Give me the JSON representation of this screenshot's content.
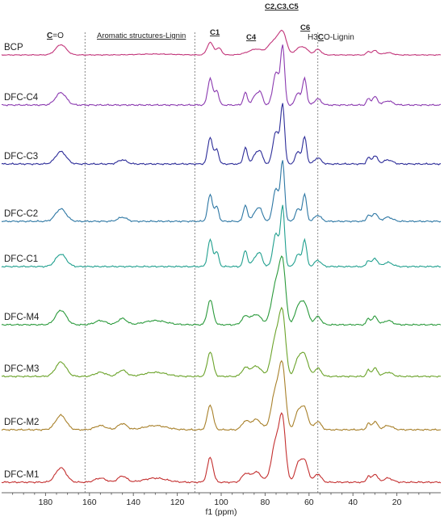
{
  "chart_data": {
    "type": "line",
    "title": "",
    "xlabel": "f1 (ppm)",
    "ylabel": "",
    "xlim": [
      200,
      0
    ],
    "x_reversed": true,
    "grid": false,
    "x_ticks": [
      "180",
      "160",
      "140",
      "120",
      "100",
      "80",
      "60",
      "40",
      "20"
    ],
    "annotations": {
      "carbonyl_underlined": "C",
      "carbonyl_rest": "=O",
      "aromatic": "Aromatic structures-Lignin",
      "c1": "C1",
      "c4": "C4",
      "c235": "C2,C3,C5",
      "c6": "C6",
      "methoxy_prefix": "H3",
      "methoxy_underlined": "C",
      "methoxy_suffix": "O-Lignin"
    },
    "reference_lines_ppm": [
      162,
      112,
      56
    ],
    "series": [
      {
        "name": "BCP",
        "color": "#c2357a",
        "scale": 0.55,
        "peaks": [
          [
            173,
            9,
            2.4
          ],
          [
            130,
            0.8,
            8
          ],
          [
            105,
            11,
            1.4
          ],
          [
            101,
            6,
            1.2
          ],
          [
            89,
            1,
            2.5
          ],
          [
            84,
            5,
            2.8
          ],
          [
            76,
            12,
            2.5
          ],
          [
            72,
            18,
            1.8
          ],
          [
            65,
            5,
            1.5
          ],
          [
            62,
            6,
            1.7
          ],
          [
            56,
            5,
            1.5
          ],
          [
            33,
            3,
            0.8
          ],
          [
            30,
            4,
            1.2
          ],
          [
            24,
            2,
            2
          ]
        ]
      },
      {
        "name": "DFC-C4",
        "color": "#8b3ab0",
        "scale": 1.0,
        "peaks": [
          [
            173,
            6,
            2.4
          ],
          [
            105,
            13,
            1.1
          ],
          [
            102,
            7,
            0.9
          ],
          [
            89,
            6,
            0.9
          ],
          [
            84,
            5,
            1.6
          ],
          [
            82,
            4,
            1
          ],
          [
            75,
            16,
            1.4
          ],
          [
            72,
            28,
            0.9
          ],
          [
            65,
            6,
            1.2
          ],
          [
            62,
            13,
            0.9
          ],
          [
            56,
            3,
            1.5
          ],
          [
            33,
            3,
            0.8
          ],
          [
            30,
            4,
            1.2
          ],
          [
            24,
            2,
            2
          ]
        ]
      },
      {
        "name": "DFC-C3",
        "color": "#2d2d99",
        "scale": 1.0,
        "peaks": [
          [
            173,
            6,
            2.4
          ],
          [
            145,
            2,
            2
          ],
          [
            105,
            13,
            1.1
          ],
          [
            102,
            7,
            0.9
          ],
          [
            89,
            8,
            0.9
          ],
          [
            84,
            5,
            1.6
          ],
          [
            82,
            4,
            1
          ],
          [
            75,
            16,
            1.4
          ],
          [
            72,
            28,
            0.9
          ],
          [
            65,
            6,
            1.2
          ],
          [
            62,
            13,
            0.9
          ],
          [
            56,
            3,
            1.5
          ],
          [
            33,
            3,
            0.8
          ],
          [
            30,
            4,
            1.2
          ],
          [
            24,
            2,
            2
          ]
        ]
      },
      {
        "name": "DFC-C2",
        "color": "#2d77a4",
        "scale": 1.0,
        "peaks": [
          [
            173,
            6,
            2.4
          ],
          [
            145,
            2,
            2
          ],
          [
            105,
            13,
            1.1
          ],
          [
            102,
            7,
            0.9
          ],
          [
            89,
            8,
            0.9
          ],
          [
            84,
            5,
            1.6
          ],
          [
            82,
            4,
            1
          ],
          [
            75,
            16,
            1.4
          ],
          [
            72,
            28,
            0.9
          ],
          [
            65,
            6,
            1.2
          ],
          [
            62,
            13,
            0.9
          ],
          [
            56,
            3,
            1.5
          ],
          [
            33,
            3,
            0.8
          ],
          [
            30,
            4,
            1.2
          ],
          [
            24,
            2,
            2
          ]
        ]
      },
      {
        "name": "DFC-C1",
        "color": "#21a08f",
        "scale": 1.0,
        "peaks": [
          [
            173,
            6,
            2.4
          ],
          [
            105,
            13,
            1.1
          ],
          [
            102,
            7,
            0.9
          ],
          [
            89,
            8,
            0.9
          ],
          [
            84,
            5,
            1.6
          ],
          [
            82,
            4,
            1
          ],
          [
            75,
            16,
            1.4
          ],
          [
            72,
            28,
            0.9
          ],
          [
            65,
            6,
            1.2
          ],
          [
            62,
            13,
            0.9
          ],
          [
            56,
            3,
            1.5
          ],
          [
            33,
            3,
            0.8
          ],
          [
            30,
            4,
            1.2
          ],
          [
            24,
            2,
            2
          ]
        ]
      },
      {
        "name": "DFC-M4",
        "color": "#2b9a3c",
        "scale": 1.0,
        "peaks": [
          [
            173,
            7,
            2.4
          ],
          [
            155,
            2,
            2.5
          ],
          [
            145,
            3,
            2
          ],
          [
            130,
            2,
            5
          ],
          [
            105,
            12,
            1.3
          ],
          [
            89,
            4,
            1.6
          ],
          [
            84,
            5,
            2.2
          ],
          [
            75,
            20,
            2
          ],
          [
            72,
            26,
            1.4
          ],
          [
            65,
            8,
            1.5
          ],
          [
            62,
            10,
            1.6
          ],
          [
            56,
            4,
            1.5
          ],
          [
            33,
            3,
            0.8
          ],
          [
            30,
            4,
            1.2
          ],
          [
            24,
            2,
            2
          ]
        ]
      },
      {
        "name": "DFC-M3",
        "color": "#6ba32a",
        "scale": 1.0,
        "peaks": [
          [
            173,
            7,
            2.4
          ],
          [
            155,
            2,
            2.5
          ],
          [
            145,
            3,
            2
          ],
          [
            130,
            2,
            5
          ],
          [
            105,
            12,
            1.3
          ],
          [
            89,
            4,
            1.6
          ],
          [
            84,
            5,
            2.2
          ],
          [
            75,
            20,
            2
          ],
          [
            72,
            26,
            1.4
          ],
          [
            65,
            8,
            1.5
          ],
          [
            62,
            10,
            1.6
          ],
          [
            56,
            4,
            1.5
          ],
          [
            33,
            3,
            0.8
          ],
          [
            30,
            4,
            1.2
          ],
          [
            24,
            2,
            2
          ]
        ]
      },
      {
        "name": "DFC-M2",
        "color": "#a8802a",
        "scale": 1.0,
        "peaks": [
          [
            173,
            7,
            2.4
          ],
          [
            155,
            2,
            2.5
          ],
          [
            145,
            3,
            2
          ],
          [
            130,
            2,
            5
          ],
          [
            105,
            12,
            1.3
          ],
          [
            89,
            4,
            1.6
          ],
          [
            84,
            5,
            2.2
          ],
          [
            75,
            20,
            2
          ],
          [
            72,
            26,
            1.4
          ],
          [
            65,
            8,
            1.5
          ],
          [
            62,
            10,
            1.6
          ],
          [
            56,
            4,
            1.5
          ],
          [
            33,
            3,
            0.8
          ],
          [
            30,
            4,
            1.2
          ],
          [
            24,
            2,
            2
          ]
        ]
      },
      {
        "name": "DFC-M1",
        "color": "#c43030",
        "scale": 1.0,
        "peaks": [
          [
            173,
            7,
            2.4
          ],
          [
            155,
            2,
            2.5
          ],
          [
            145,
            3,
            2
          ],
          [
            130,
            2,
            5
          ],
          [
            105,
            12,
            1.3
          ],
          [
            89,
            4,
            1.6
          ],
          [
            84,
            5,
            2.2
          ],
          [
            75,
            20,
            2
          ],
          [
            72,
            26,
            1.4
          ],
          [
            65,
            8,
            1.5
          ],
          [
            62,
            10,
            1.6
          ],
          [
            56,
            4,
            1.5
          ],
          [
            33,
            3,
            0.8
          ],
          [
            30,
            4,
            1.2
          ],
          [
            24,
            2,
            2
          ]
        ]
      }
    ]
  }
}
